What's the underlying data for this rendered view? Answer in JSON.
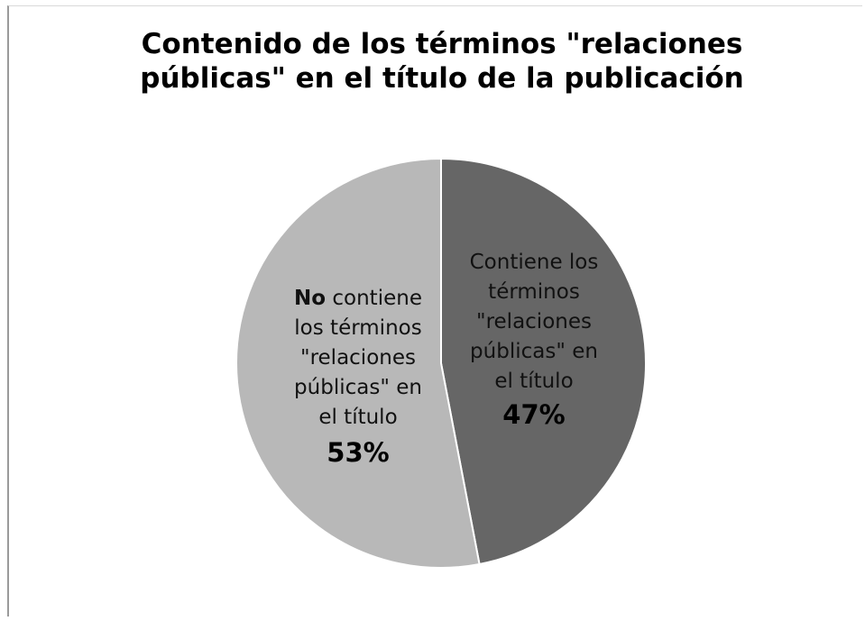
{
  "chart_data": {
    "type": "pie",
    "title_lines": [
      "Contenido de los términos \"relaciones",
      "públicas\" en el título de la publicación"
    ],
    "slices": [
      {
        "label_lines": [
          "Contiene los",
          "términos",
          "\"relaciones",
          "públicas\" en",
          "el título"
        ],
        "value": 47,
        "value_label": "47%",
        "color": "#666666"
      },
      {
        "label_lead": "No",
        "label_first_rest": " contiene",
        "label_lines": [
          "los términos",
          "\"relaciones",
          "públicas\" en",
          "el título"
        ],
        "value": 53,
        "value_label": "53%",
        "color": "#b8b8b8"
      }
    ],
    "start_angle_deg": 0,
    "direction": "clockwise",
    "legend": "none"
  }
}
